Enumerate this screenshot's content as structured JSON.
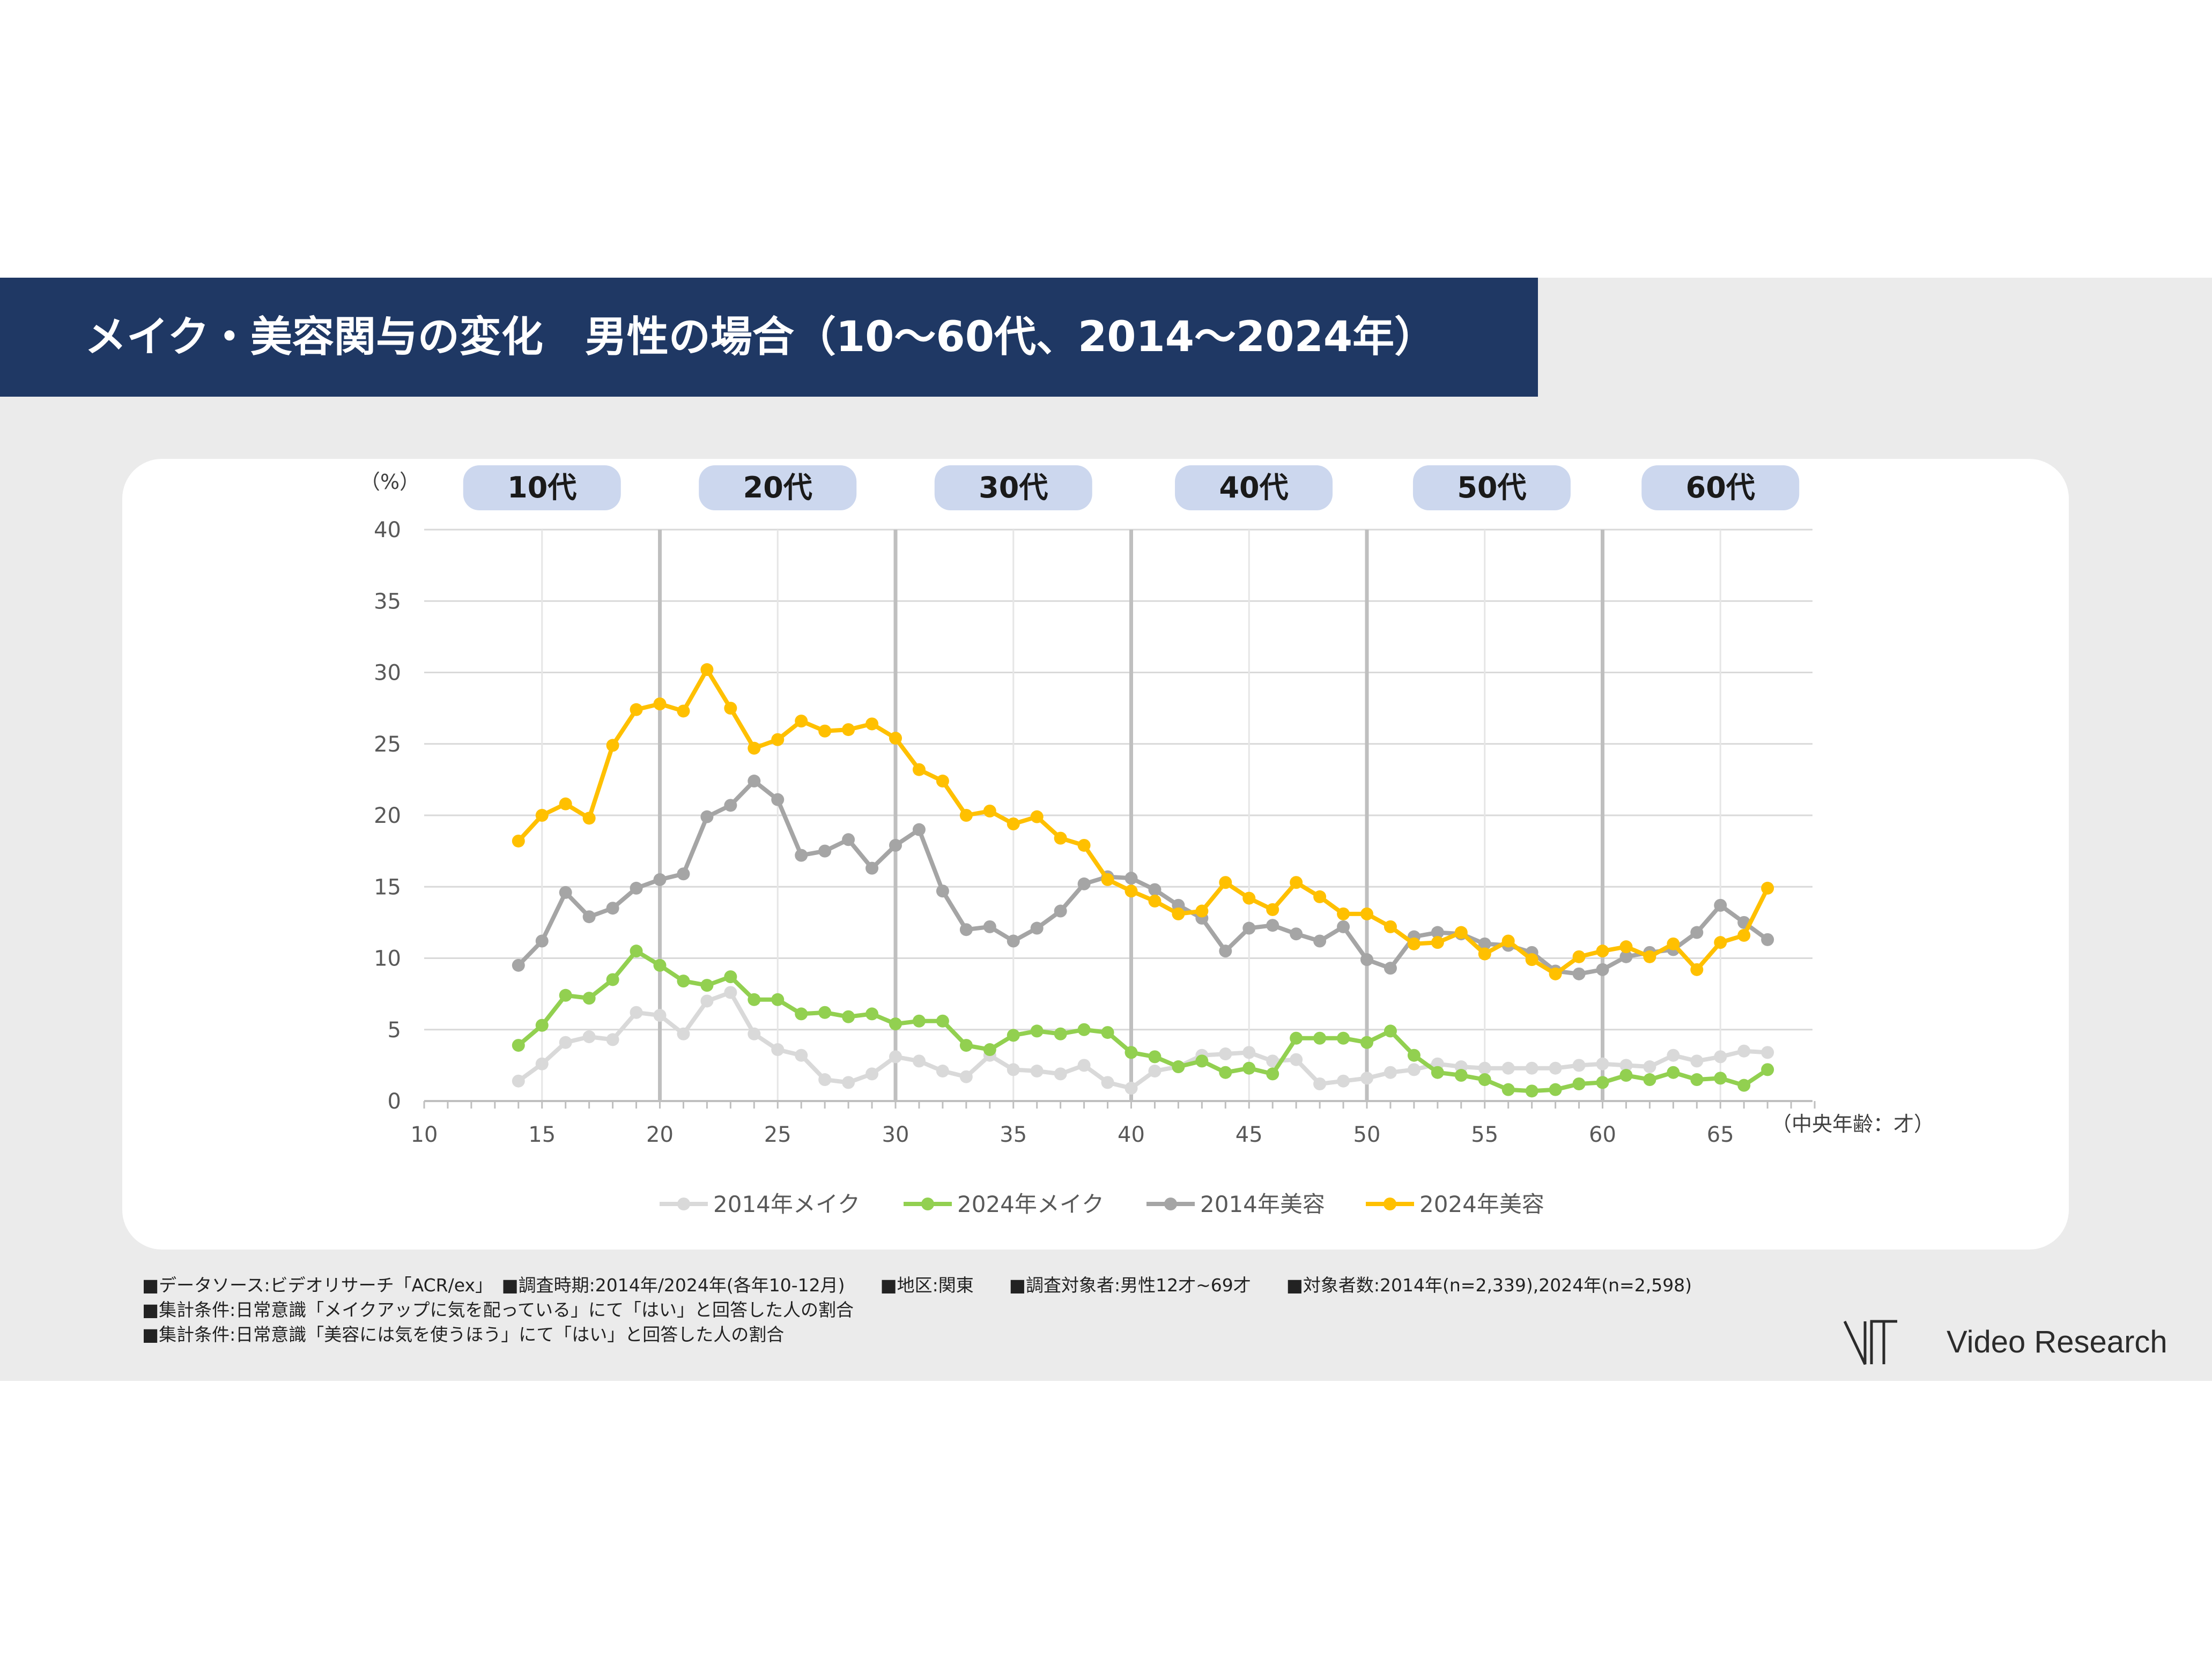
{
  "title": "メイク・美容関与の変化　男性の場合（10～60代、2014～2024年）",
  "chart_data": {
    "type": "line",
    "y_unit_label": "（%）",
    "x_unit_label": "（中央年齢：才）",
    "xlim": [
      10,
      69
    ],
    "ylim": [
      0,
      40
    ],
    "x_ticks": [
      10,
      15,
      20,
      25,
      30,
      35,
      40,
      45,
      50,
      55,
      60,
      65
    ],
    "y_ticks": [
      0,
      5,
      10,
      15,
      20,
      25,
      30,
      35,
      40
    ],
    "decade_dividers": [
      20,
      30,
      40,
      50,
      60
    ],
    "age_groups": [
      {
        "label": "10代",
        "center": 15
      },
      {
        "label": "20代",
        "center": 25
      },
      {
        "label": "30代",
        "center": 35
      },
      {
        "label": "40代",
        "center": 45.2
      },
      {
        "label": "50代",
        "center": 55.3
      },
      {
        "label": "60代",
        "center": 65
      }
    ],
    "legend_position": "bottom",
    "x": [
      14,
      15,
      16,
      17,
      18,
      19,
      20,
      21,
      22,
      23,
      24,
      25,
      26,
      27,
      28,
      29,
      30,
      31,
      32,
      33,
      34,
      35,
      36,
      37,
      38,
      39,
      40,
      41,
      42,
      43,
      44,
      45,
      46,
      47,
      48,
      49,
      50,
      51,
      52,
      53,
      54,
      55,
      56,
      57,
      58,
      59,
      60,
      61,
      62,
      63,
      64,
      65,
      66,
      67
    ],
    "series": [
      {
        "name": "2014年メイク",
        "color": "#d9d9d9",
        "values": [
          1.4,
          2.6,
          4.1,
          4.5,
          4.3,
          6.2,
          6.0,
          4.7,
          7.0,
          7.6,
          4.7,
          3.6,
          3.2,
          1.5,
          1.3,
          1.9,
          3.1,
          2.8,
          2.1,
          1.7,
          3.2,
          2.2,
          2.1,
          1.9,
          2.5,
          1.3,
          0.9,
          2.1,
          2.4,
          3.2,
          3.3,
          3.4,
          2.8,
          2.9,
          1.2,
          1.4,
          1.6,
          2.0,
          2.2,
          2.6,
          2.4,
          2.3,
          2.3,
          2.3,
          2.3,
          2.5,
          2.6,
          2.5,
          2.4,
          3.2,
          2.8,
          3.1,
          3.5,
          3.4
        ]
      },
      {
        "name": "2024年メイク",
        "color": "#92d050",
        "values": [
          3.9,
          5.3,
          7.4,
          7.2,
          8.5,
          10.5,
          9.5,
          8.4,
          8.1,
          8.7,
          7.1,
          7.1,
          6.1,
          6.2,
          5.9,
          6.1,
          5.4,
          5.6,
          5.6,
          3.9,
          3.6,
          4.6,
          4.9,
          4.7,
          5.0,
          4.8,
          3.4,
          3.1,
          2.4,
          2.8,
          2.0,
          2.3,
          1.9,
          4.4,
          4.4,
          4.4,
          4.1,
          4.9,
          3.2,
          2.0,
          1.8,
          1.5,
          0.8,
          0.7,
          0.8,
          1.2,
          1.3,
          1.8,
          1.5,
          2.0,
          1.5,
          1.6,
          1.1,
          2.2
        ]
      },
      {
        "name": "2014年美容",
        "color": "#a5a5a5",
        "values": [
          9.5,
          11.2,
          14.6,
          12.9,
          13.5,
          14.9,
          15.5,
          15.9,
          19.9,
          20.7,
          22.4,
          21.1,
          17.2,
          17.5,
          18.3,
          16.3,
          17.9,
          19.0,
          14.7,
          12.0,
          12.2,
          11.2,
          12.1,
          13.3,
          15.2,
          15.7,
          15.6,
          14.8,
          13.7,
          12.8,
          10.5,
          12.1,
          12.3,
          11.7,
          11.2,
          12.2,
          9.9,
          9.3,
          11.5,
          11.8,
          11.7,
          11.0,
          10.9,
          10.4,
          9.1,
          8.9,
          9.2,
          10.1,
          10.4,
          10.6,
          11.8,
          13.7,
          12.5,
          11.3
        ]
      },
      {
        "name": "2024年美容",
        "color": "#ffc000",
        "values": [
          18.2,
          20.0,
          20.8,
          19.8,
          24.9,
          27.4,
          27.8,
          27.3,
          30.2,
          27.5,
          24.7,
          25.3,
          26.6,
          25.9,
          26.0,
          26.4,
          25.4,
          23.2,
          22.4,
          20.0,
          20.3,
          19.4,
          19.9,
          18.4,
          17.9,
          15.5,
          14.7,
          14.0,
          13.1,
          13.3,
          15.3,
          14.2,
          13.4,
          15.3,
          14.3,
          13.1,
          13.1,
          12.2,
          11.0,
          11.1,
          11.8,
          10.3,
          11.2,
          9.9,
          8.9,
          10.1,
          10.5,
          10.8,
          10.1,
          11.0,
          9.2,
          11.1,
          11.6,
          14.9
        ]
      }
    ]
  },
  "footnotes": [
    "■データソース:ビデオリサーチ「ACR/ex」　■調査時期:2014年/2024年(各年10-12月)　　■地区:関東　　■調査対象者:男性12才~69才　　■対象者数:2014年(n=2,339),2024年(n=2,598)",
    "■集計条件:日常意識「メイクアップに気を配っている」にて「はい」と回答した人の割合",
    "■集計条件:日常意識「美容には気を使うほう」にて「はい」と回答した人の割合"
  ],
  "logo_text": "Video Research"
}
